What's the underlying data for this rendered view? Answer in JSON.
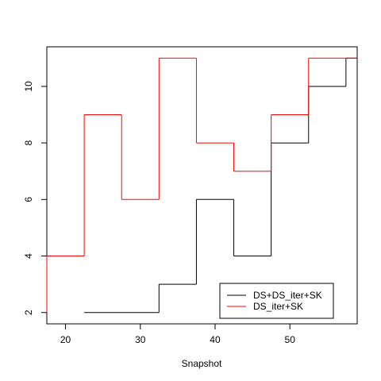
{
  "chart_data": {
    "type": "line",
    "title": "",
    "xlabel": "Snapshot",
    "ylabel": "",
    "xlim": [
      17.5,
      59
    ],
    "ylim": [
      1.6,
      11.4
    ],
    "xticks": [
      20,
      30,
      40,
      50
    ],
    "yticks": [
      2,
      4,
      6,
      8,
      10
    ],
    "grid": false,
    "legend_position": "bottom-right",
    "step_mode": "centered",
    "series": [
      {
        "name": "DS+DS_iter+SK",
        "color": "#000000",
        "x": [
          17.5,
          22.5,
          32.5,
          37.5,
          42.5,
          47.5,
          52.5,
          57.5
        ],
        "values": [
          null,
          2,
          3,
          6,
          4,
          8,
          10,
          11
        ]
      },
      {
        "name": "DS_iter+SK",
        "color": "#ff0000",
        "x": [
          17.5,
          22.5,
          27.5,
          32.5,
          37.5,
          42.5,
          47.5,
          52.5,
          57.5
        ],
        "values": [
          4,
          9,
          6,
          11,
          8,
          7,
          9,
          11,
          11
        ]
      }
    ]
  }
}
